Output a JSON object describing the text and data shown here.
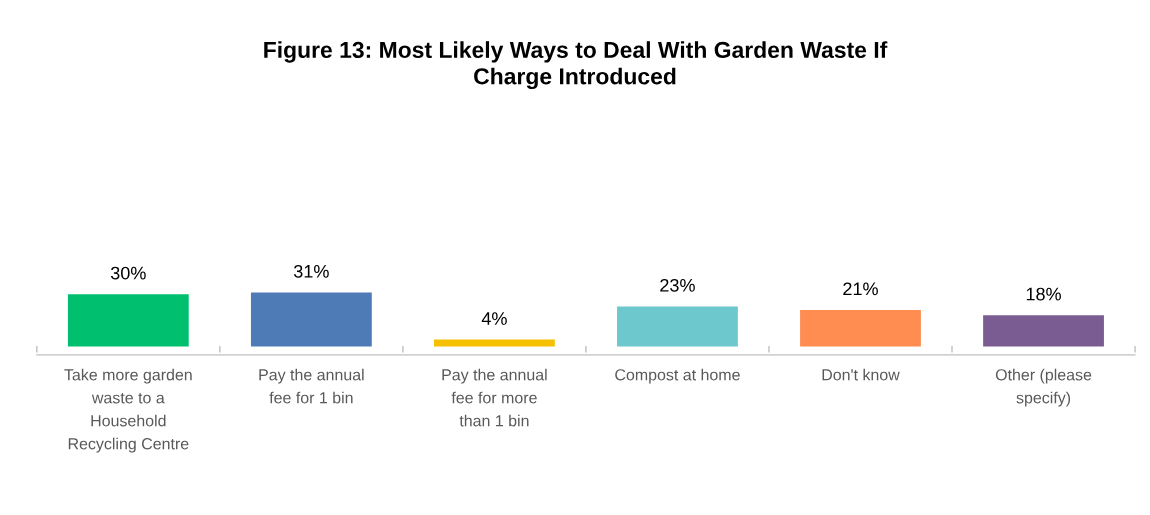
{
  "chart_data": {
    "type": "bar",
    "title": "Figure 13: Most Likely Ways to Deal With Garden Waste If Charge Introduced",
    "categories": [
      "Take more garden waste to a Household Recycling Centre",
      "Pay the annual fee for 1 bin",
      "Pay the annual fee for more than 1 bin",
      "Compost at home",
      "Don't know",
      "Other (please specify)"
    ],
    "values": [
      30,
      31,
      4,
      23,
      21,
      18
    ],
    "value_labels": [
      "30%",
      "31%",
      "4%",
      "23%",
      "21%",
      "18%"
    ],
    "colors": [
      "#00bf6f",
      "#4e7ab5",
      "#f5c000",
      "#6cc8cc",
      "#ff8c50",
      "#7b5c92"
    ],
    "grid": false,
    "legend": false
  }
}
